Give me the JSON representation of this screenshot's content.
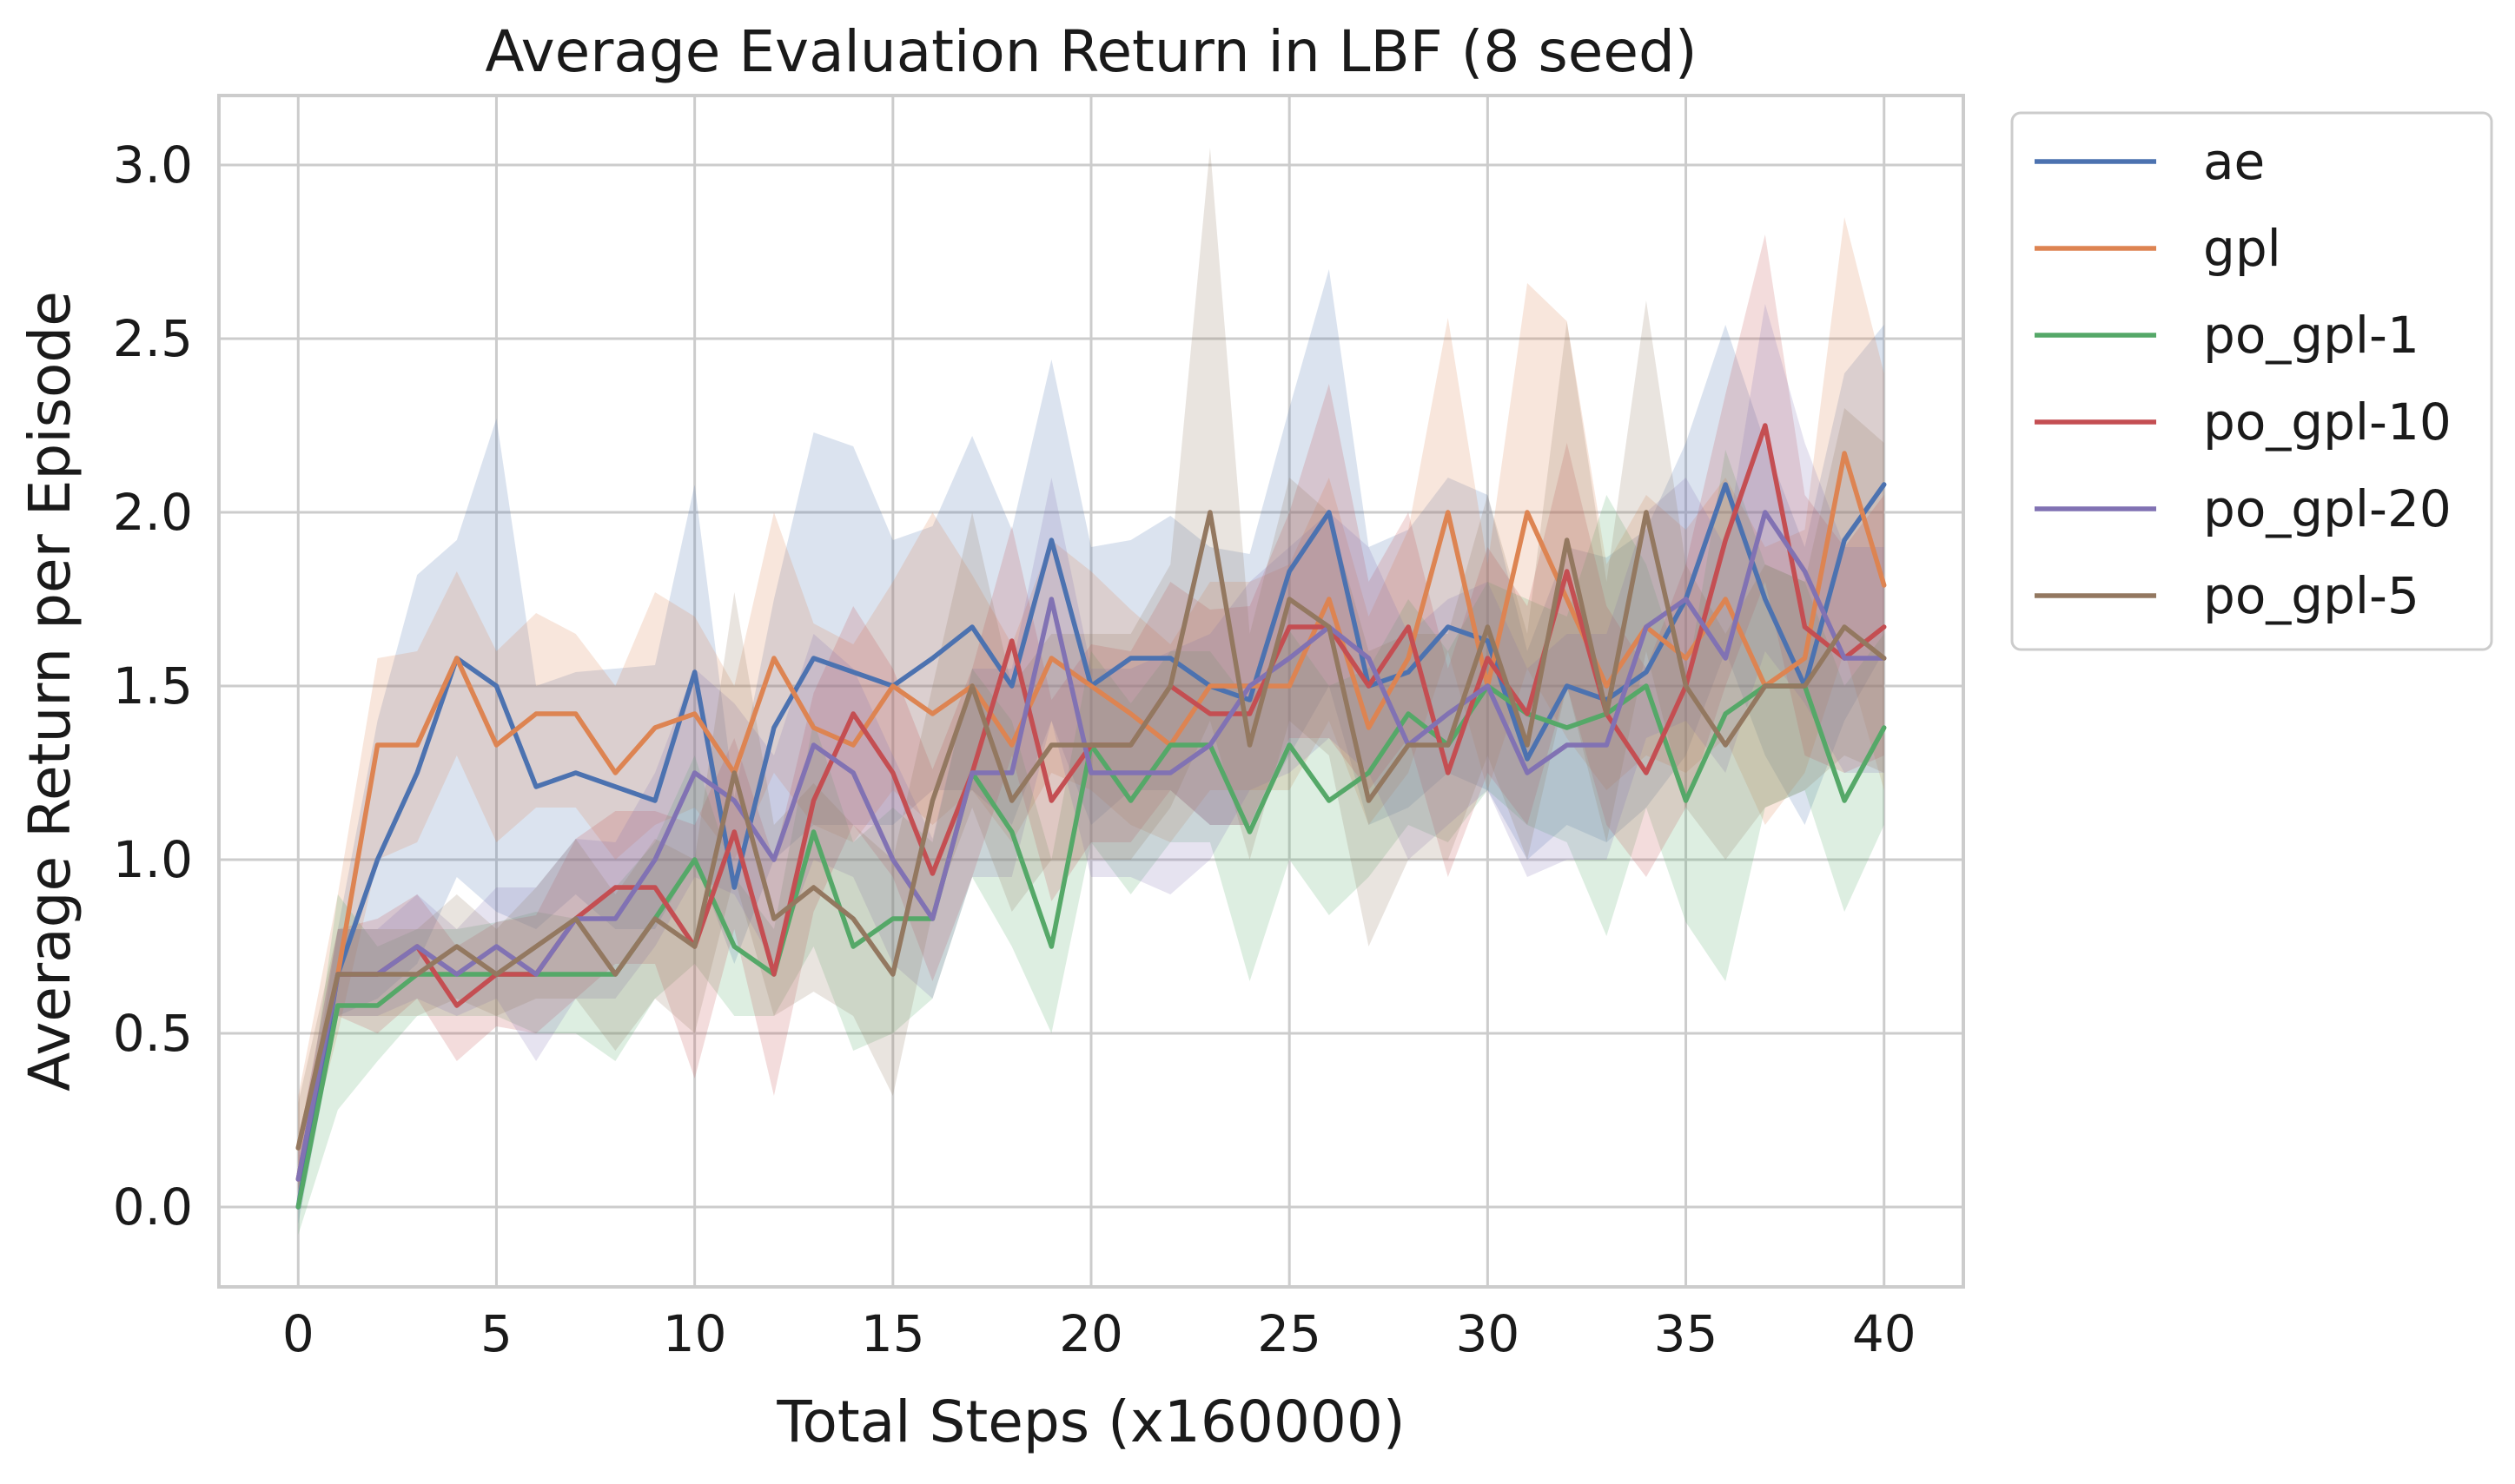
{
  "chart_data": {
    "type": "line",
    "title": "Average Evaluation Return in LBF (8 seed)",
    "xlabel": "Total Steps (x160000)",
    "ylabel": "Average Return per Episode",
    "xlim": [
      -2,
      42
    ],
    "ylim": [
      -0.23,
      3.2
    ],
    "xticks": [
      0,
      5,
      10,
      15,
      20,
      25,
      30,
      35,
      40
    ],
    "xtick_labels": [
      "0",
      "5",
      "10",
      "15",
      "20",
      "25",
      "30",
      "35",
      "40"
    ],
    "yticks": [
      0.0,
      0.5,
      1.0,
      1.5,
      2.0,
      2.5,
      3.0
    ],
    "ytick_labels": [
      "0.0",
      "0.5",
      "1.0",
      "1.5",
      "2.0",
      "2.5",
      "3.0"
    ],
    "grid": true,
    "legend_position": "outside upper right",
    "x": [
      0,
      1,
      2,
      3,
      4,
      5,
      6,
      7,
      8,
      9,
      10,
      11,
      12,
      13,
      14,
      15,
      16,
      17,
      18,
      19,
      20,
      21,
      22,
      23,
      24,
      25,
      26,
      27,
      28,
      29,
      30,
      31,
      32,
      33,
      34,
      35,
      36,
      37,
      38,
      39,
      40
    ],
    "series": [
      {
        "name": "ae",
        "color": "#4c72b0",
        "values": [
          0.0,
          0.67,
          1.0,
          1.25,
          1.58,
          1.5,
          1.21,
          1.25,
          1.21,
          1.17,
          1.54,
          0.92,
          1.38,
          1.58,
          1.54,
          1.5,
          1.58,
          1.67,
          1.5,
          1.92,
          1.5,
          1.58,
          1.58,
          1.5,
          1.46,
          1.83,
          2.0,
          1.5,
          1.54,
          1.67,
          1.63,
          1.29,
          1.5,
          1.46,
          1.54,
          1.75,
          2.08,
          1.75,
          1.5,
          1.92,
          2.08
        ],
        "lower": [
          -0.05,
          0.55,
          0.6,
          0.7,
          0.95,
          0.85,
          0.8,
          0.9,
          0.8,
          0.8,
          1.0,
          0.7,
          1.0,
          1.1,
          1.1,
          1.1,
          1.2,
          1.2,
          1.1,
          1.4,
          1.1,
          1.2,
          1.2,
          1.1,
          1.1,
          1.3,
          1.5,
          1.1,
          1.15,
          1.25,
          1.2,
          1.0,
          1.1,
          1.05,
          1.15,
          1.3,
          1.6,
          1.3,
          1.1,
          1.4,
          1.6
        ],
        "upper": [
          0.08,
          0.8,
          1.4,
          1.82,
          1.92,
          2.27,
          1.5,
          1.54,
          1.55,
          1.56,
          2.08,
          1.18,
          1.75,
          2.23,
          2.19,
          1.92,
          1.96,
          2.22,
          1.95,
          2.44,
          1.9,
          1.92,
          1.99,
          1.9,
          1.88,
          2.3,
          2.7,
          1.9,
          1.95,
          2.1,
          2.05,
          1.6,
          1.9,
          1.87,
          1.95,
          2.2,
          2.54,
          2.2,
          1.9,
          2.4,
          2.54
        ]
      },
      {
        "name": "gpl",
        "color": "#dd8452",
        "values": [
          0.17,
          0.67,
          1.33,
          1.33,
          1.58,
          1.33,
          1.42,
          1.42,
          1.25,
          1.38,
          1.42,
          1.25,
          1.58,
          1.38,
          1.33,
          1.5,
          1.42,
          1.5,
          1.33,
          1.58,
          1.5,
          1.42,
          1.33,
          1.5,
          1.5,
          1.5,
          1.75,
          1.38,
          1.58,
          2.0,
          1.5,
          2.0,
          1.75,
          1.5,
          1.67,
          1.58,
          1.75,
          1.5,
          1.58,
          2.17,
          1.79
        ],
        "lower": [
          0.05,
          0.5,
          1.0,
          1.05,
          1.3,
          1.05,
          1.15,
          1.15,
          1.0,
          1.1,
          1.15,
          1.0,
          1.25,
          1.1,
          1.05,
          1.2,
          1.1,
          1.2,
          1.05,
          1.25,
          1.2,
          1.1,
          1.05,
          1.2,
          1.2,
          1.2,
          1.4,
          1.1,
          1.25,
          1.6,
          1.2,
          1.55,
          1.35,
          1.2,
          1.3,
          1.25,
          1.35,
          1.1,
          1.25,
          1.6,
          1.2
        ],
        "upper": [
          0.32,
          0.9,
          1.58,
          1.6,
          1.83,
          1.6,
          1.71,
          1.65,
          1.5,
          1.77,
          1.7,
          1.5,
          2.0,
          1.68,
          1.62,
          1.8,
          2.0,
          1.82,
          1.62,
          1.92,
          1.83,
          1.72,
          1.62,
          1.8,
          1.8,
          1.85,
          2.1,
          1.7,
          1.95,
          2.56,
          1.85,
          2.66,
          2.55,
          1.85,
          2.05,
          1.95,
          2.1,
          1.9,
          1.95,
          2.85,
          2.4
        ]
      },
      {
        "name": "po_gpl-1",
        "color": "#55a868",
        "values": [
          0.0,
          0.58,
          0.58,
          0.67,
          0.67,
          0.67,
          0.67,
          0.67,
          0.67,
          0.83,
          1.0,
          0.75,
          0.67,
          1.08,
          0.75,
          0.83,
          0.83,
          1.25,
          1.08,
          0.75,
          1.33,
          1.17,
          1.33,
          1.33,
          1.08,
          1.33,
          1.17,
          1.25,
          1.42,
          1.33,
          1.5,
          1.42,
          1.38,
          1.42,
          1.5,
          1.17,
          1.42,
          1.5,
          1.5,
          1.17,
          1.38
        ],
        "lower": [
          -0.08,
          0.28,
          0.42,
          0.55,
          0.55,
          0.55,
          0.5,
          0.5,
          0.42,
          0.6,
          0.7,
          0.55,
          0.55,
          0.75,
          0.45,
          0.5,
          0.6,
          0.95,
          0.75,
          0.5,
          1.05,
          0.9,
          1.05,
          1.05,
          0.65,
          1.0,
          0.84,
          0.95,
          1.1,
          1.05,
          1.2,
          1.1,
          1.05,
          0.78,
          1.15,
          0.82,
          0.65,
          1.15,
          1.2,
          0.85,
          1.1
        ],
        "upper": [
          0.08,
          0.9,
          0.75,
          0.8,
          0.8,
          0.82,
          0.85,
          0.83,
          0.92,
          1.05,
          1.3,
          0.95,
          0.8,
          1.4,
          1.05,
          1.15,
          1.05,
          1.55,
          1.4,
          1.0,
          1.6,
          1.45,
          1.6,
          1.6,
          1.45,
          1.66,
          1.5,
          1.55,
          1.75,
          1.6,
          1.8,
          1.75,
          1.7,
          2.05,
          1.85,
          1.5,
          2.18,
          1.85,
          1.8,
          1.5,
          1.65
        ]
      },
      {
        "name": "po_gpl-10",
        "color": "#c44e52",
        "values": [
          0.08,
          0.67,
          0.67,
          0.75,
          0.58,
          0.67,
          0.67,
          0.83,
          0.92,
          0.92,
          0.75,
          1.08,
          0.67,
          1.17,
          1.42,
          1.25,
          0.96,
          1.25,
          1.63,
          1.17,
          1.33,
          1.33,
          1.5,
          1.42,
          1.42,
          1.67,
          1.67,
          1.5,
          1.67,
          1.25,
          1.58,
          1.42,
          1.83,
          1.42,
          1.25,
          1.5,
          1.92,
          2.25,
          1.67,
          1.58,
          1.67
        ],
        "lower": [
          0.0,
          0.55,
          0.5,
          0.6,
          0.42,
          0.52,
          0.5,
          0.6,
          0.7,
          0.7,
          0.37,
          0.8,
          0.32,
          0.85,
          1.1,
          0.95,
          0.65,
          0.95,
          1.3,
          0.88,
          1.05,
          1.05,
          1.2,
          1.1,
          1.1,
          1.35,
          1.35,
          1.2,
          1.35,
          0.95,
          1.25,
          1.1,
          1.5,
          1.1,
          0.95,
          1.15,
          1.5,
          1.8,
          1.3,
          1.25,
          1.3
        ],
        "upper": [
          0.18,
          0.8,
          0.83,
          0.9,
          0.75,
          0.82,
          0.84,
          1.06,
          1.14,
          1.14,
          1.1,
          1.35,
          1.0,
          1.48,
          1.73,
          1.55,
          1.26,
          1.55,
          1.96,
          1.46,
          1.62,
          1.6,
          1.8,
          1.72,
          1.73,
          2.0,
          2.37,
          1.8,
          2.0,
          1.55,
          1.9,
          1.73,
          2.2,
          1.73,
          1.55,
          1.85,
          2.34,
          2.8,
          2.05,
          1.9,
          2.05
        ]
      },
      {
        "name": "po_gpl-20",
        "color": "#8172b3",
        "values": [
          0.08,
          0.67,
          0.67,
          0.75,
          0.67,
          0.75,
          0.67,
          0.83,
          0.83,
          1.0,
          1.25,
          1.17,
          1.0,
          1.33,
          1.25,
          1.0,
          0.83,
          1.25,
          1.25,
          1.75,
          1.25,
          1.25,
          1.25,
          1.33,
          1.5,
          1.58,
          1.67,
          1.58,
          1.33,
          1.42,
          1.5,
          1.25,
          1.33,
          1.33,
          1.67,
          1.75,
          1.58,
          2.0,
          1.83,
          1.58,
          1.58
        ],
        "lower": [
          0.0,
          0.55,
          0.55,
          0.6,
          0.55,
          0.6,
          0.42,
          0.6,
          0.6,
          0.75,
          0.95,
          0.9,
          0.7,
          1.0,
          0.95,
          0.7,
          0.6,
          0.95,
          0.95,
          1.4,
          0.95,
          0.95,
          0.9,
          1.0,
          1.2,
          1.25,
          1.35,
          1.25,
          1.0,
          1.1,
          1.2,
          0.95,
          1.0,
          1.0,
          1.35,
          1.4,
          1.25,
          1.6,
          1.45,
          1.25,
          1.25
        ],
        "upper": [
          0.18,
          0.8,
          0.8,
          0.9,
          0.8,
          0.92,
          0.92,
          1.06,
          1.05,
          1.25,
          1.55,
          1.45,
          1.3,
          1.65,
          1.55,
          1.3,
          1.06,
          1.55,
          1.55,
          2.1,
          1.55,
          1.55,
          1.6,
          1.65,
          1.8,
          1.9,
          2.0,
          1.9,
          1.65,
          1.75,
          1.8,
          1.55,
          1.65,
          1.65,
          2.0,
          2.1,
          1.9,
          2.6,
          2.2,
          1.9,
          1.9
        ]
      },
      {
        "name": "po_gpl-5",
        "color": "#937860",
        "values": [
          0.17,
          0.67,
          0.67,
          0.67,
          0.75,
          0.67,
          0.75,
          0.83,
          0.67,
          0.83,
          0.75,
          1.25,
          0.83,
          0.92,
          0.83,
          0.67,
          1.17,
          1.5,
          1.17,
          1.33,
          1.33,
          1.33,
          1.5,
          2.0,
          1.33,
          1.75,
          1.67,
          1.17,
          1.33,
          1.33,
          1.67,
          1.33,
          1.92,
          1.42,
          2.0,
          1.5,
          1.33,
          1.5,
          1.5,
          1.67,
          1.58
        ],
        "lower": [
          0.05,
          0.55,
          0.55,
          0.55,
          0.6,
          0.55,
          0.6,
          0.6,
          0.45,
          0.6,
          0.5,
          0.95,
          0.55,
          0.62,
          0.55,
          0.32,
          0.85,
          1.15,
          0.85,
          1.0,
          1.0,
          1.0,
          1.15,
          1.4,
          1.0,
          1.4,
          1.3,
          0.75,
          1.0,
          1.0,
          1.3,
          1.0,
          1.5,
          1.05,
          1.6,
          1.15,
          1.0,
          1.15,
          1.2,
          1.3,
          1.25
        ],
        "upper": [
          0.3,
          0.8,
          0.8,
          0.8,
          0.9,
          0.8,
          0.92,
          1.06,
          0.9,
          1.06,
          1.0,
          1.77,
          1.1,
          1.22,
          1.1,
          1.0,
          1.5,
          2.0,
          1.5,
          1.65,
          1.65,
          1.65,
          1.85,
          3.05,
          1.65,
          2.1,
          2.0,
          1.6,
          1.65,
          1.65,
          2.05,
          1.65,
          2.55,
          1.8,
          2.61,
          1.85,
          1.65,
          1.85,
          1.8,
          2.3,
          2.2
        ]
      }
    ]
  }
}
